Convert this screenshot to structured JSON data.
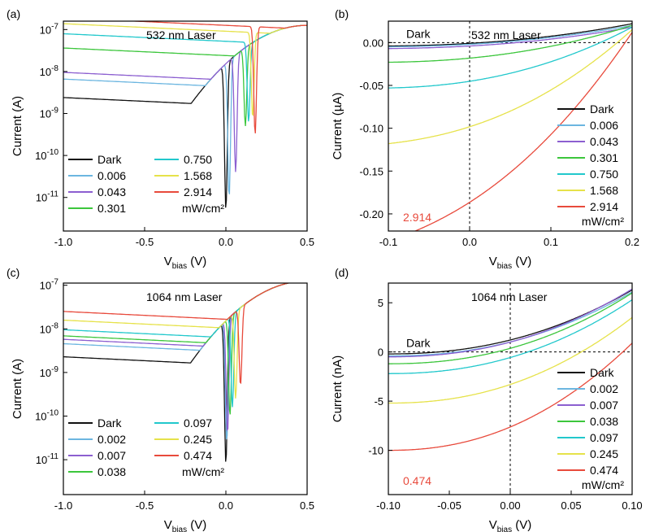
{
  "chart_data": [
    {
      "panel": "(a)",
      "type": "line",
      "annotation": "532 nm Laser",
      "xlabel": "V",
      "xlabel_sub": "bias",
      "xlabel_unit": "(V)",
      "ylabel": "Current (A)",
      "xlim": [
        -1.0,
        0.5
      ],
      "ylim_log10": [
        -11.8,
        -6.8
      ],
      "yscale": "log",
      "xticks": [
        "-1.0",
        "-0.5",
        "0.0",
        "0.5"
      ],
      "yticks": [
        {
          "exp": "-11"
        },
        {
          "exp": "-10"
        },
        {
          "exp": "-9"
        },
        {
          "exp": "-8"
        },
        {
          "exp": "-7"
        }
      ],
      "ytick_base": "10",
      "legend_unit": "mW/cm²",
      "legend_placement": "bottom-left",
      "series": [
        {
          "name": "Dark",
          "color": "#111111",
          "reverse": -8.8,
          "dip_x": 0.0,
          "dip_y": -11.3,
          "tail_x": 0.15
        },
        {
          "name": "0.006",
          "color": "#6cb6e0",
          "reverse": -8.36,
          "dip_x": 0.02,
          "dip_y": -11.0,
          "tail_x": 0.14
        },
        {
          "name": "0.043",
          "color": "#8c5fd0",
          "reverse": -8.2,
          "dip_x": 0.06,
          "dip_y": -10.4,
          "tail_x": 0.14
        },
        {
          "name": "0.301",
          "color": "#3cc63c",
          "reverse": -7.62,
          "dip_x": 0.12,
          "dip_y": -9.3,
          "tail_x": 0.18
        },
        {
          "name": "0.750",
          "color": "#22c8cc",
          "reverse": -7.28,
          "dip_x": 0.14,
          "dip_y": -9.2,
          "tail_x": 0.2
        },
        {
          "name": "1.568",
          "color": "#e6e24a",
          "reverse": -7.04,
          "dip_x": 0.165,
          "dip_y": -9.1,
          "tail_x": 0.22
        },
        {
          "name": "2.914",
          "color": "#e84a3c",
          "reverse": -6.9,
          "dip_x": 0.18,
          "dip_y": -9.5,
          "tail_x": 0.24
        }
      ]
    },
    {
      "panel": "(b)",
      "type": "line",
      "annotation": "532 nm Laser",
      "dark_label": "Dark",
      "value_label": "2.914",
      "xlabel": "V",
      "xlabel_sub": "bias",
      "xlabel_unit": "(V)",
      "ylabel": "Current (µA)",
      "xlim": [
        -0.1,
        0.2
      ],
      "ylim": [
        -0.22,
        0.025
      ],
      "xticks": [
        "-0.1",
        "0.0",
        "0.1",
        "0.2"
      ],
      "yticks": [
        "-0.20",
        "-0.15",
        "-0.10",
        "-0.05",
        "0.00"
      ],
      "legend_unit": "mW/cm²",
      "legend_placement": "lower-right",
      "series": [
        {
          "name": "Dark",
          "color": "#111111",
          "isc": -0.001,
          "end": 0.022,
          "s0": 0.003,
          "s1": 0.0
        },
        {
          "name": "0.006",
          "color": "#6cb6e0",
          "isc": -0.002,
          "end": 0.02,
          "s0": 0.003,
          "s1": 0.0
        },
        {
          "name": "0.043",
          "color": "#8c5fd0",
          "isc": -0.004,
          "end": 0.018,
          "s0": 0.003,
          "s1": 0.0
        },
        {
          "name": "0.301",
          "color": "#3cc63c",
          "isc": -0.019,
          "end": 0.02,
          "s0": 0.004,
          "s1": 0.0
        },
        {
          "name": "0.750",
          "color": "#22c8cc",
          "isc": -0.047,
          "end": 0.018,
          "s0": 0.006,
          "s1": 0.0
        },
        {
          "name": "1.568",
          "color": "#e6e24a",
          "isc": -0.095,
          "end": 0.015,
          "s0": 0.013,
          "s1": 0.05
        },
        {
          "name": "2.914",
          "color": "#e84a3c",
          "isc": -0.162,
          "end": 0.012,
          "s0": 0.04,
          "s1": 0.15
        }
      ]
    },
    {
      "panel": "(c)",
      "type": "line",
      "annotation": "1064 nm Laser",
      "xlabel": "V",
      "xlabel_sub": "bias",
      "xlabel_unit": "(V)",
      "ylabel": "Current (A)",
      "xlim": [
        -1.0,
        0.5
      ],
      "ylim_log10": [
        -11.8,
        -6.95
      ],
      "yscale": "log",
      "xticks": [
        "-1.0",
        "-0.5",
        "0.0",
        "0.5"
      ],
      "yticks": [
        {
          "exp": "-11"
        },
        {
          "exp": "-10"
        },
        {
          "exp": "-9"
        },
        {
          "exp": "-8"
        },
        {
          "exp": "-7"
        }
      ],
      "ytick_base": "10",
      "legend_unit": "mW/cm²",
      "legend_placement": "bottom-left",
      "series": [
        {
          "name": "Dark",
          "color": "#111111",
          "reverse": -8.82,
          "dip_x": 0.0,
          "dip_y": -11.1,
          "tail_x": 0.15
        },
        {
          "name": "0.002",
          "color": "#6cb6e0",
          "reverse": -8.52,
          "dip_x": 0.005,
          "dip_y": -10.6,
          "tail_x": 0.15
        },
        {
          "name": "0.007",
          "color": "#8c5fd0",
          "reverse": -8.42,
          "dip_x": 0.01,
          "dip_y": -10.4,
          "tail_x": 0.15
        },
        {
          "name": "0.038",
          "color": "#3cc63c",
          "reverse": -8.34,
          "dip_x": 0.025,
          "dip_y": -10.0,
          "tail_x": 0.15
        },
        {
          "name": "0.097",
          "color": "#22c8cc",
          "reverse": -8.2,
          "dip_x": 0.04,
          "dip_y": -9.8,
          "tail_x": 0.15
        },
        {
          "name": "0.245",
          "color": "#e6e24a",
          "reverse": -7.98,
          "dip_x": 0.06,
          "dip_y": -9.6,
          "tail_x": 0.15
        },
        {
          "name": "0.474",
          "color": "#e84a3c",
          "reverse": -7.78,
          "dip_x": 0.09,
          "dip_y": -9.3,
          "tail_x": 0.15
        }
      ]
    },
    {
      "panel": "(d)",
      "type": "line",
      "annotation": "1064 nm Laser",
      "dark_label": "Dark",
      "value_label": "0.474",
      "xlabel": "V",
      "xlabel_sub": "bias",
      "xlabel_unit": "(V)",
      "ylabel": "Current (nA)",
      "xlim": [
        -0.1,
        0.1
      ],
      "ylim": [
        -14.5,
        7.0
      ],
      "xticks": [
        "-0.10",
        "-0.05",
        "0.00",
        "0.05",
        "0.10"
      ],
      "yticks": [
        "-10",
        "-5",
        "0",
        "5"
      ],
      "legend_unit": "mW/cm²",
      "legend_placement": "lower-right",
      "series": [
        {
          "name": "Dark",
          "color": "#111111",
          "isc": -0.2,
          "end": 6.3,
          "s0": 0.0,
          "s1": 0.0
        },
        {
          "name": "0.002",
          "color": "#6cb6e0",
          "isc": -0.4,
          "end": 6.1,
          "s0": 0.0,
          "s1": 0.0
        },
        {
          "name": "0.007",
          "color": "#8c5fd0",
          "isc": -0.5,
          "end": 6.4,
          "s0": 0.0,
          "s1": 0.0
        },
        {
          "name": "0.038",
          "color": "#3cc63c",
          "isc": -1.2,
          "end": 6.0,
          "s0": 0.0,
          "s1": 0.0
        },
        {
          "name": "0.097",
          "color": "#22c8cc",
          "isc": -2.2,
          "end": 5.3,
          "s0": 0.0,
          "s1": 0.0
        },
        {
          "name": "0.245",
          "color": "#e6e24a",
          "isc": -5.2,
          "end": 3.5,
          "s0": 0.0,
          "s1": 0.0
        },
        {
          "name": "0.474",
          "color": "#e84a3c",
          "isc": -10.0,
          "end": 0.9,
          "s0": 0.0,
          "s1": 0.0
        }
      ]
    }
  ]
}
